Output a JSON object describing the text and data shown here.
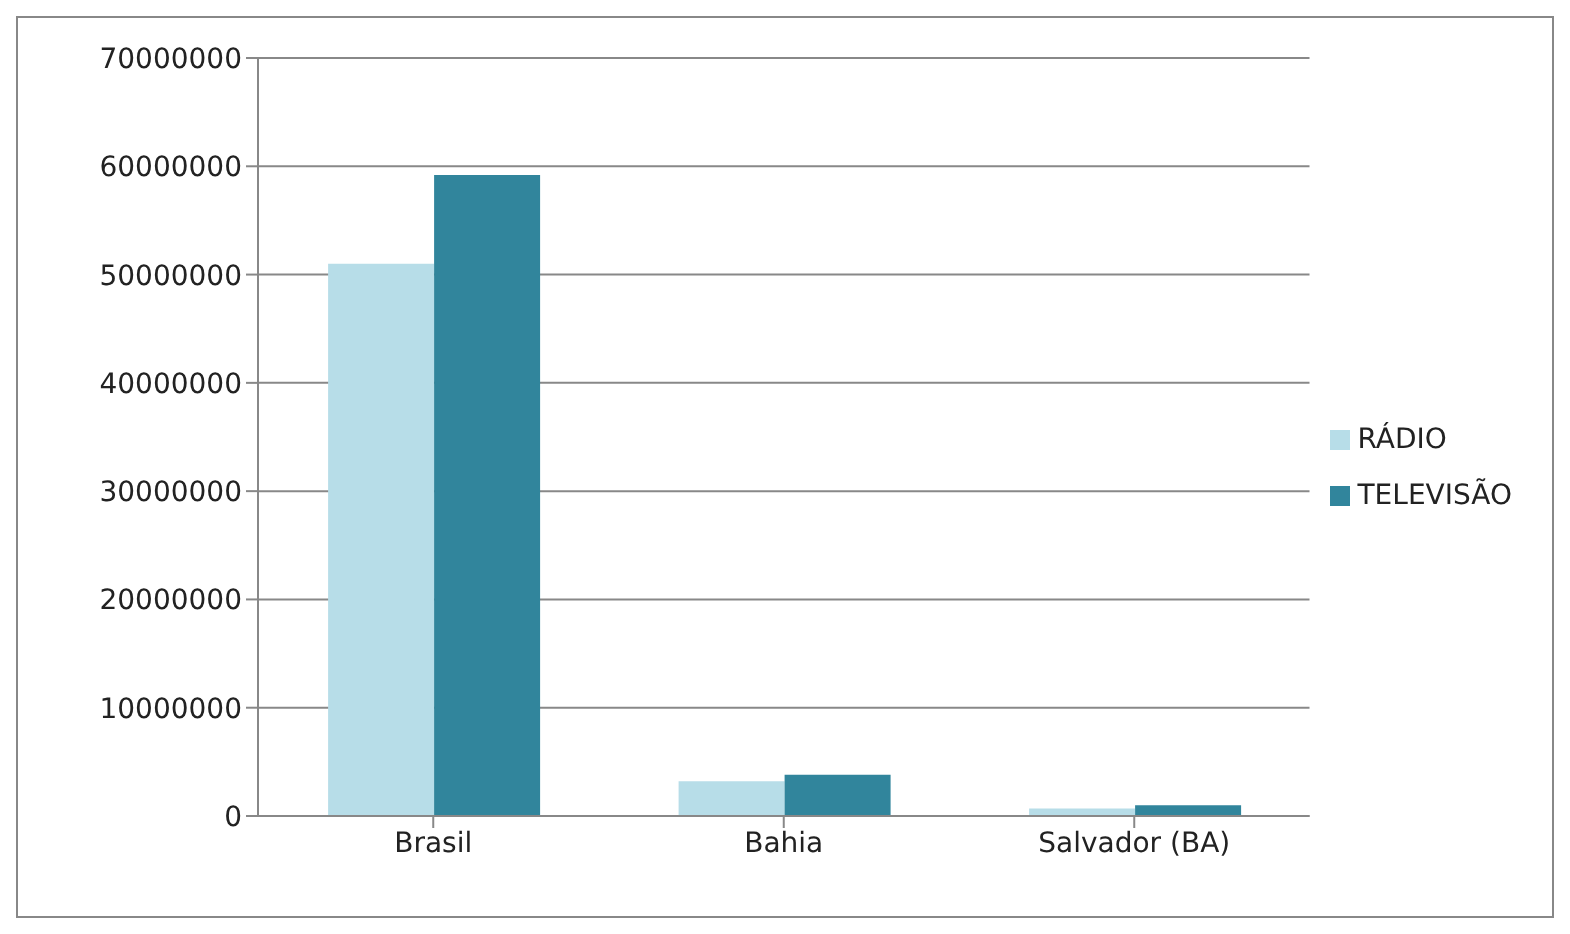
{
  "chart_data": {
    "type": "bar",
    "categories": [
      "Brasil",
      "Bahia",
      "Salvador (BA)"
    ],
    "series": [
      {
        "name": "RÁDIO",
        "color": "#b7dde8",
        "values": [
          51000000,
          3200000,
          700000
        ]
      },
      {
        "name": "TELEVISÃO",
        "color": "#31859c",
        "values": [
          59200000,
          3800000,
          1000000
        ]
      }
    ],
    "ylim": [
      0,
      70000000
    ],
    "yticks": [
      0,
      10000000,
      20000000,
      30000000,
      40000000,
      50000000,
      60000000,
      70000000
    ],
    "grid": "y",
    "legend": "right"
  }
}
